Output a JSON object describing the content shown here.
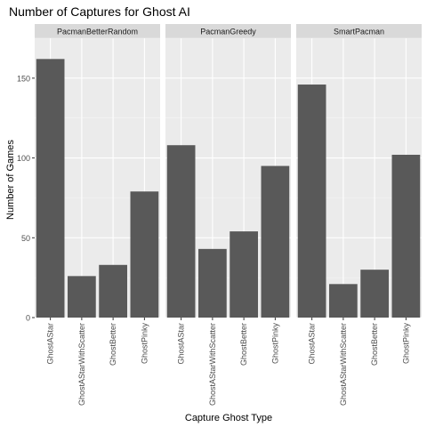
{
  "chart_data": {
    "type": "bar",
    "title": "Number of Captures for Ghost AI",
    "xlabel": "Capture Ghost Type",
    "ylabel": "Number of Games",
    "categories": [
      "GhostAStar",
      "GhostAStarWithScatter",
      "GhostBetter",
      "GhostPinky"
    ],
    "ylim": [
      0,
      175
    ],
    "yticks": [
      0,
      50,
      100,
      150
    ],
    "grid": true,
    "colors": {
      "bar": "#595959",
      "panel_bg": "#ebebeb",
      "strip_bg": "#d9d9d9",
      "grid_major": "#ffffff",
      "grid_minor": "#f5f5f5",
      "text": "#000000",
      "axis_text": "#4d4d4d"
    },
    "panels": [
      {
        "name": "PacmanBetterRandom",
        "values": [
          162,
          26,
          33,
          79
        ]
      },
      {
        "name": "PacmanGreedy",
        "values": [
          108,
          43,
          54,
          95
        ]
      },
      {
        "name": "SmartPacman",
        "values": [
          146,
          21,
          30,
          102
        ]
      }
    ]
  }
}
